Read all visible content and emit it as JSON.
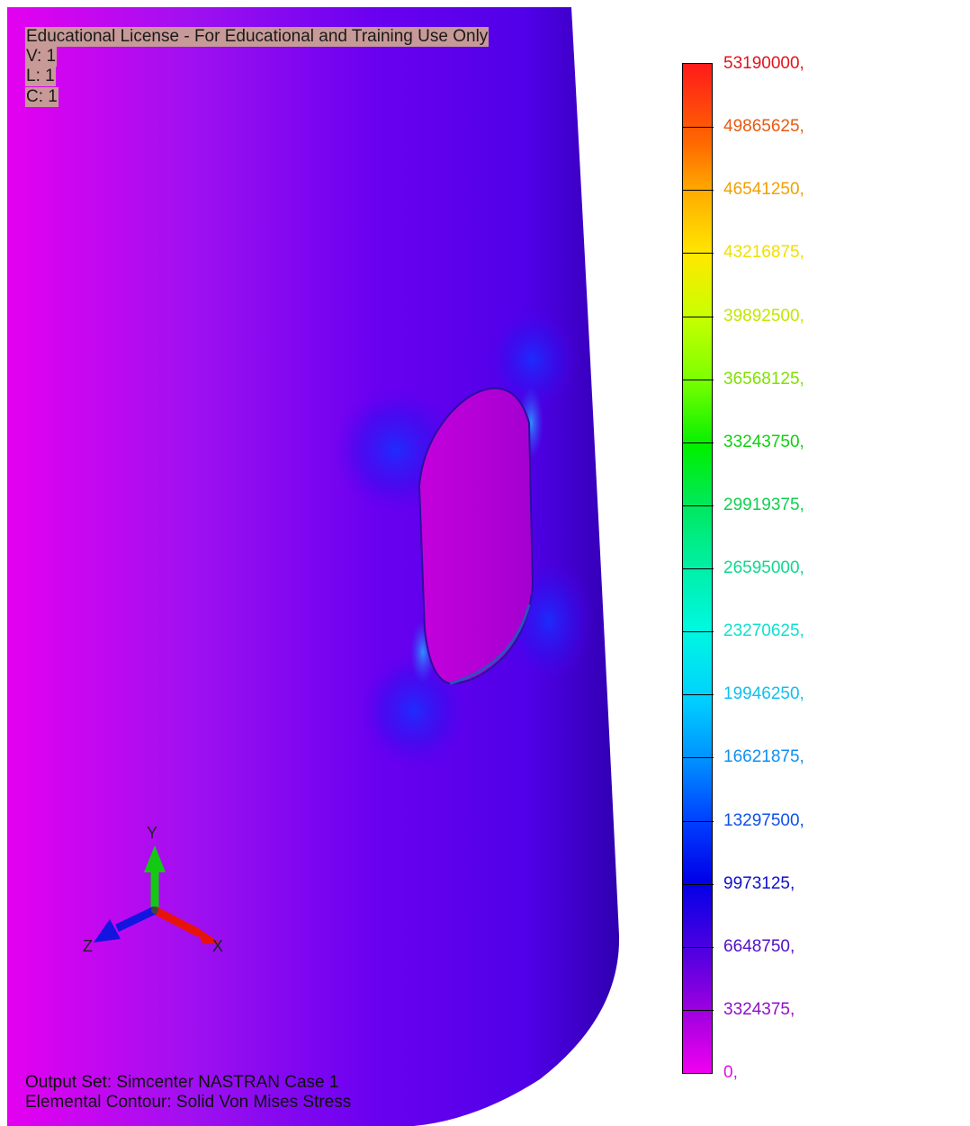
{
  "header": {
    "license_notice": "Educational License - For Educational and Training Use Only",
    "view": "V: 1",
    "layer": "L: 1",
    "color": "C: 1"
  },
  "footer": {
    "output_set": "Output Set: Simcenter NASTRAN Case 1",
    "contour": "Elemental Contour: Solid Von Mises Stress"
  },
  "triad": {
    "x_label": "X",
    "y_label": "Y",
    "z_label": "Z",
    "x_color": "#e8120c",
    "y_color": "#14c814",
    "z_color": "#1414e0"
  },
  "legend": {
    "labels": [
      {
        "text": "53190000,",
        "color": "#e0141c"
      },
      {
        "text": "49865625,",
        "color": "#e85a10"
      },
      {
        "text": "46541250,",
        "color": "#f0a000"
      },
      {
        "text": "43216875,",
        "color": "#f0e000"
      },
      {
        "text": "39892500,",
        "color": "#c0e800"
      },
      {
        "text": "36568125,",
        "color": "#80e000"
      },
      {
        "text": "33243750,",
        "color": "#10d010"
      },
      {
        "text": "29919375,",
        "color": "#10d050"
      },
      {
        "text": "26595000,",
        "color": "#10d890"
      },
      {
        "text": "23270625,",
        "color": "#10e0d0"
      },
      {
        "text": "19946250,",
        "color": "#10c0f0"
      },
      {
        "text": "16621875,",
        "color": "#1090f0"
      },
      {
        "text": "13297500,",
        "color": "#1050e8"
      },
      {
        "text": "9973125,",
        "color": "#1010c8"
      },
      {
        "text": "6648750,",
        "color": "#5010c8"
      },
      {
        "text": "3324375,",
        "color": "#9010c8"
      },
      {
        "text": "0,",
        "color": "#e010e0"
      }
    ]
  },
  "colors": {
    "low_stress": "#d800e8",
    "mid_stress": "#7000f0",
    "edge_stress": "#3a00c0",
    "header_bg": "#c79a98",
    "background": "#ffffff"
  }
}
